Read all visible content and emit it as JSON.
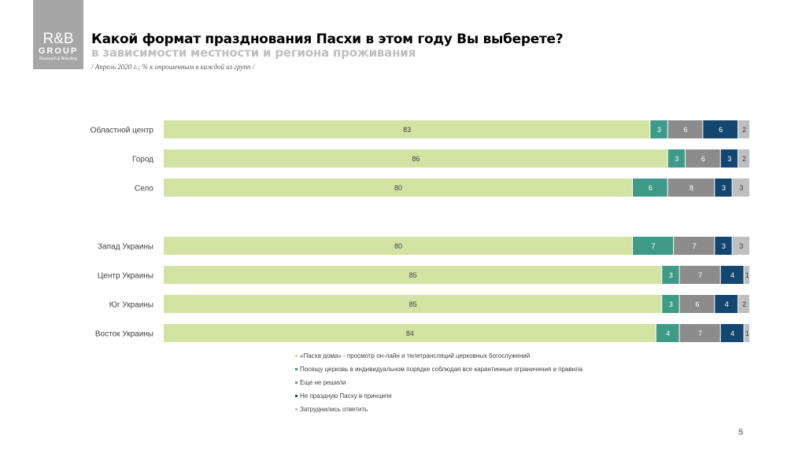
{
  "logo": {
    "line1": "R&B",
    "line2": "GROUP",
    "line3": "Research & Branding"
  },
  "title": "Какой формат празднования Пасхи в этом году Вы выберете?",
  "subtitle": "в зависимости местности и региона проживания",
  "note": "/ Апрель 2020 г.; % к опрошенным в каждой из групп /",
  "page_number": "5",
  "colors": {
    "easter_home": "#d3e3a3",
    "church": "#3d9b88",
    "undecided": "#8c8c8c",
    "not_celebrate": "#14476f",
    "hard_to_say": "#bfbfbf"
  },
  "chart_data": {
    "type": "bar",
    "orientation": "horizontal",
    "stacked": true,
    "categories": [
      "Областной центр",
      "Город",
      "Село",
      "Запад Украины",
      "Центр Украины",
      "Юг Украины",
      "Восток Украины"
    ],
    "series": [
      {
        "name": "«Пасха дома» - просмотр он-лайн и телетрансляций церковных богослужений",
        "values": [
          83,
          86,
          80,
          80,
          85,
          85,
          84
        ]
      },
      {
        "name": "Посещу церковь в индивидуальном порядке соблюдая все карантинные ограничения и правила",
        "values": [
          3,
          3,
          6,
          7,
          3,
          3,
          4
        ]
      },
      {
        "name": "Еще не решили",
        "values": [
          6,
          6,
          8,
          7,
          7,
          6,
          7
        ]
      },
      {
        "name": "Не праздную Пасху в принципе",
        "values": [
          6,
          3,
          3,
          3,
          4,
          4,
          4
        ]
      },
      {
        "name": "Затруднились ответить",
        "values": [
          2,
          2,
          3,
          3,
          1,
          2,
          1
        ]
      }
    ],
    "xlim": [
      0,
      100
    ],
    "legend_position": "bottom"
  }
}
